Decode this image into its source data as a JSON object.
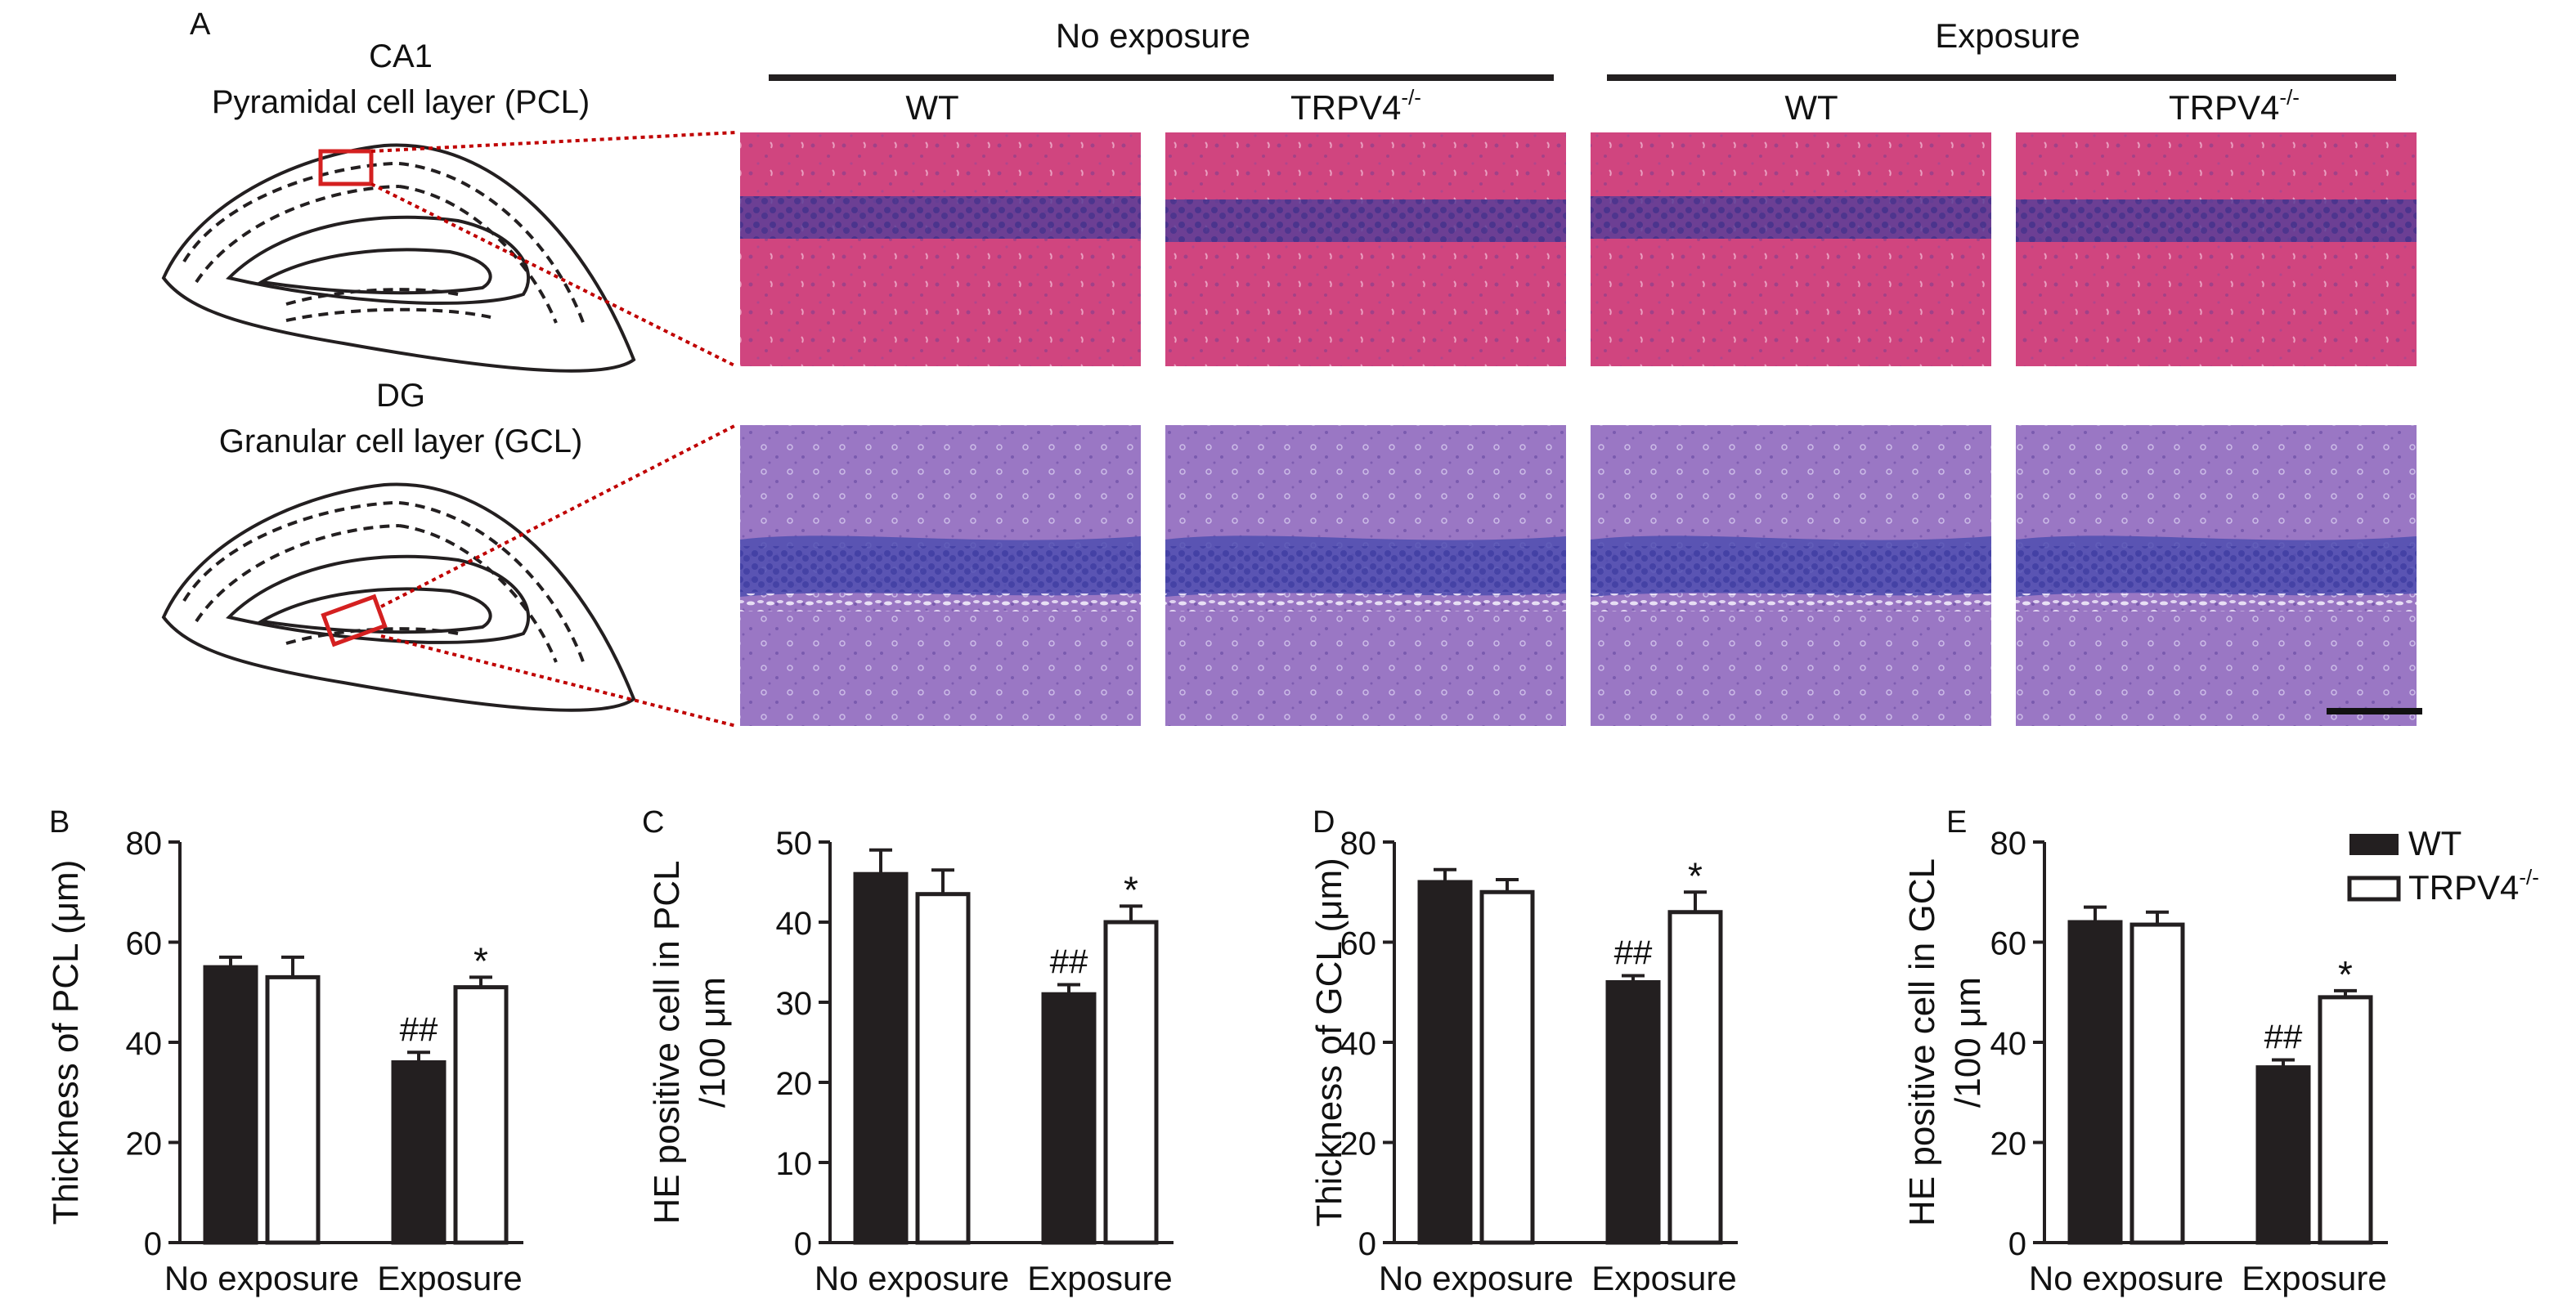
{
  "panel_a": {
    "letter": "A",
    "ca1_title": "CA1",
    "ca1_subtitle": "Pyramidal cell layer (PCL)",
    "dg_title": "DG",
    "dg_subtitle": "Granular cell layer (GCL)",
    "groups": [
      {
        "label": "No exposure",
        "columns": [
          {
            "label": "WT"
          },
          {
            "label": "TRPV4",
            "superscript": "-/-"
          }
        ]
      },
      {
        "label": "Exposure",
        "columns": [
          {
            "label": "WT"
          },
          {
            "label": "TRPV4",
            "superscript": "-/-"
          }
        ]
      }
    ]
  },
  "colors": {
    "wt_bar": "#231f20",
    "trpv4_bar": "#ffffff",
    "outline": "#231f20",
    "dashed_zoom": "#c00000",
    "roi_box": "#d42020",
    "ca1_stain": "#d0457f",
    "ca1_band": "#5b3e98",
    "dg_stain": "#9a77c4",
    "dg_band": "#4f4db0"
  },
  "legend": {
    "wt": "WT",
    "trpv4": "TRPV4",
    "trpv4_sup": "-/-"
  },
  "chart_data": [
    {
      "id": "B",
      "type": "bar",
      "letter": "B",
      "ylabel_lines": [
        "Thickness of PCL (μm)"
      ],
      "ylim": [
        0,
        80
      ],
      "yticks": [
        0,
        20,
        40,
        60,
        80
      ],
      "categories": [
        "No exposure",
        "Exposure"
      ],
      "series": [
        {
          "name": "WT",
          "values": [
            55,
            36
          ],
          "errors": [
            2,
            2
          ]
        },
        {
          "name": "TRPV4-/-",
          "values": [
            53,
            51
          ],
          "errors": [
            4,
            2
          ]
        }
      ],
      "annotations": [
        {
          "series": 0,
          "category": 1,
          "text": "##"
        },
        {
          "series": 1,
          "category": 1,
          "text": "*"
        }
      ]
    },
    {
      "id": "C",
      "type": "bar",
      "letter": "C",
      "ylabel_lines": [
        "HE positive cell in PCL",
        "/100 μm"
      ],
      "ylim": [
        0,
        50
      ],
      "yticks": [
        0,
        10,
        20,
        30,
        40,
        50
      ],
      "categories": [
        "No exposure",
        "Exposure"
      ],
      "series": [
        {
          "name": "WT",
          "values": [
            46,
            31
          ],
          "errors": [
            3,
            1.2
          ]
        },
        {
          "name": "TRPV4-/-",
          "values": [
            43.5,
            40
          ],
          "errors": [
            3,
            2
          ]
        }
      ],
      "annotations": [
        {
          "series": 0,
          "category": 1,
          "text": "##"
        },
        {
          "series": 1,
          "category": 1,
          "text": "*"
        }
      ]
    },
    {
      "id": "D",
      "type": "bar",
      "letter": "D",
      "ylabel_lines": [
        "Thickness of GCL (μm)"
      ],
      "ylim": [
        0,
        80
      ],
      "yticks": [
        0,
        20,
        40,
        60,
        80
      ],
      "categories": [
        "No exposure",
        "Exposure"
      ],
      "series": [
        {
          "name": "WT",
          "values": [
            72,
            52
          ],
          "errors": [
            2.5,
            1.3
          ]
        },
        {
          "name": "TRPV4-/-",
          "values": [
            70,
            66
          ],
          "errors": [
            2.5,
            4
          ]
        }
      ],
      "annotations": [
        {
          "series": 0,
          "category": 1,
          "text": "##"
        },
        {
          "series": 1,
          "category": 1,
          "text": "*"
        }
      ]
    },
    {
      "id": "E",
      "type": "bar",
      "letter": "E",
      "ylabel_lines": [
        "HE positive cell in GCL",
        "/100 μm"
      ],
      "ylim": [
        0,
        80
      ],
      "yticks": [
        0,
        20,
        40,
        60,
        80
      ],
      "categories": [
        "No exposure",
        "Exposure"
      ],
      "series": [
        {
          "name": "WT",
          "values": [
            64,
            35
          ],
          "errors": [
            3,
            1.5
          ]
        },
        {
          "name": "TRPV4-/-",
          "values": [
            63.5,
            49
          ],
          "errors": [
            2.5,
            1.3
          ]
        }
      ],
      "annotations": [
        {
          "series": 0,
          "category": 1,
          "text": "##"
        },
        {
          "series": 1,
          "category": 1,
          "text": "*"
        }
      ]
    }
  ]
}
